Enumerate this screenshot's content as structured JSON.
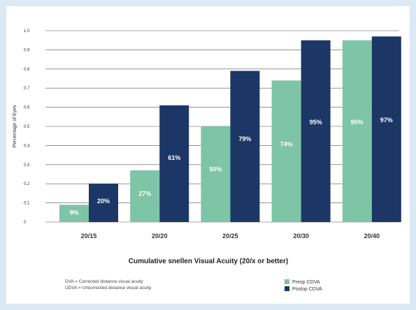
{
  "chart_data": {
    "type": "bar",
    "title": "",
    "xlabel": "Cumulative snellen Visual Acuity (20/x or better)",
    "ylabel": "Percentage of Eyes",
    "ylim": [
      0,
      1.0
    ],
    "yticks": [
      "0",
      "0.1",
      "0.2",
      "0.3",
      "0.4",
      "0.5",
      "0.6",
      "0.7",
      "0.8",
      "0.9",
      "1.0"
    ],
    "grid": true,
    "legend_position": "bottom-right",
    "categories": [
      "20/15",
      "20/20",
      "20/25",
      "20/30",
      "20/40"
    ],
    "series": [
      {
        "name": "Preop CDVA",
        "color": "#7ec4a6",
        "values": [
          0.09,
          0.27,
          0.5,
          0.74,
          0.95
        ],
        "labels": [
          "9%",
          "27%",
          "50%",
          "74%",
          "95%"
        ]
      },
      {
        "name": "Postop CDVA",
        "color": "#1c3766",
        "values": [
          0.2,
          0.61,
          0.79,
          0.95,
          0.97
        ],
        "labels": [
          "20%",
          "61%",
          "79%",
          "95%",
          "97%"
        ]
      }
    ]
  },
  "footnotes": [
    "DVA = Corrected distance visual acuity",
    "UDVA = Uncorrected distance visual acuity"
  ]
}
